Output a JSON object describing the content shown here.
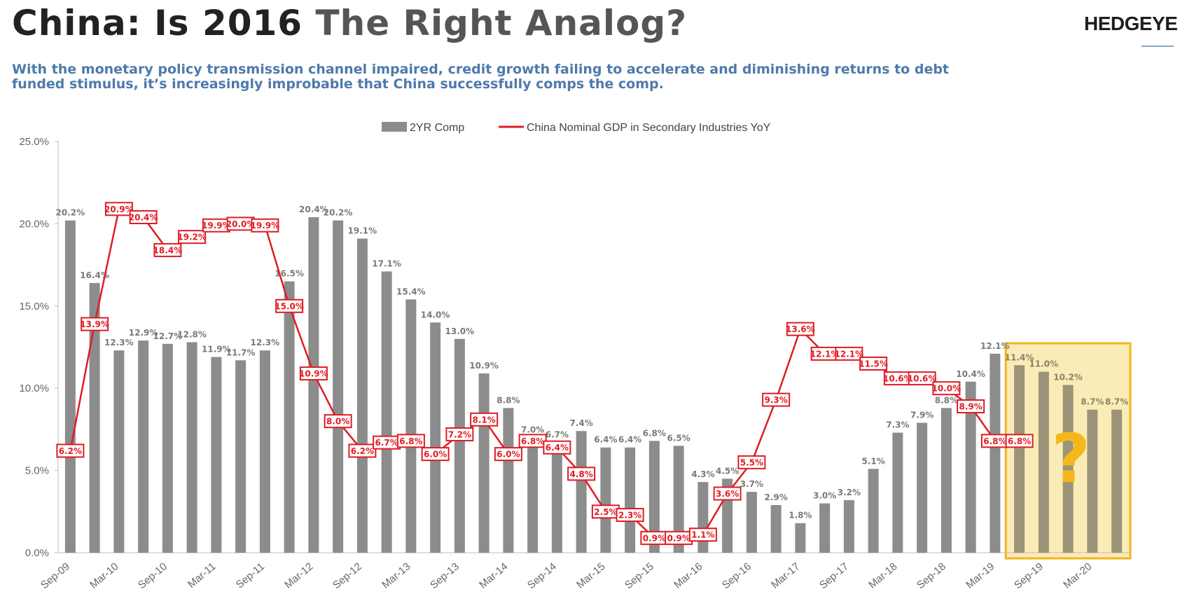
{
  "header": {
    "title_part1": "China: Is 2016 ",
    "title_part2": "The Right Analog?",
    "logo": "HEDGEYE",
    "subtitle": "With the monetary policy transmission channel impaired, credit growth failing to accelerate and diminishing returns to debt funded stimulus, it’s increasingly improbable that China successfully comps the comp."
  },
  "chart_data": {
    "type": "bar",
    "title": "",
    "xlabel": "",
    "ylabel": "",
    "ylim": [
      0,
      25
    ],
    "y_ticks": [
      "0.0%",
      "5.0%",
      "10.0%",
      "15.0%",
      "20.0%",
      "25.0%"
    ],
    "grid": false,
    "legend_position": "top-center",
    "x_tick_labels": [
      "Sep-09",
      "Mar-10",
      "Sep-10",
      "Mar-11",
      "Sep-11",
      "Mar-12",
      "Sep-12",
      "Mar-13",
      "Sep-13",
      "Mar-14",
      "Sep-14",
      "Mar-15",
      "Sep-15",
      "Mar-16",
      "Sep-16",
      "Mar-17",
      "Sep-17",
      "Mar-18",
      "Sep-18",
      "Mar-19",
      "Sep-19",
      "Mar-20"
    ],
    "series": [
      {
        "name": "2YR Comp",
        "kind": "bar",
        "color": "#8c8c8c",
        "values": [
          20.2,
          16.4,
          12.3,
          12.9,
          12.7,
          12.8,
          11.9,
          11.7,
          12.3,
          16.5,
          20.4,
          20.2,
          19.1,
          17.1,
          15.4,
          14.0,
          13.0,
          10.9,
          8.8,
          7.0,
          6.7,
          7.4,
          6.4,
          6.4,
          6.8,
          6.5,
          4.3,
          4.5,
          3.7,
          2.9,
          1.8,
          3.0,
          3.2,
          5.1,
          7.3,
          7.9,
          8.8,
          10.4,
          12.1,
          11.4,
          11.0,
          10.2,
          8.7,
          8.7
        ],
        "labels": [
          "20.2%",
          "16.4%",
          "12.3%",
          "12.9%",
          "12.7%",
          "12.8%",
          "11.9%",
          "11.7%",
          "12.3%",
          "16.5%",
          "20.4%",
          "20.2%",
          "19.1%",
          "17.1%",
          "15.4%",
          "14.0%",
          "13.0%",
          "10.9%",
          "8.8%",
          "7.0%",
          "6.7%",
          "7.4%",
          "6.4%",
          "6.4%",
          "6.8%",
          "6.5%",
          "4.3%",
          "4.5%",
          "3.7%",
          "2.9%",
          "1.8%",
          "3.0%",
          "3.2%",
          "5.1%",
          "7.3%",
          "7.9%",
          "8.8%",
          "10.4%",
          "12.1%",
          "11.4%",
          "11.0%",
          "10.2%",
          "8.7%",
          "8.7%"
        ]
      },
      {
        "name": "China Nominal GDP in Secondary Industries YoY",
        "kind": "line",
        "color": "#e01c24",
        "values": [
          6.2,
          13.9,
          20.9,
          20.4,
          18.4,
          19.2,
          19.9,
          20.0,
          19.9,
          15.0,
          10.9,
          8.0,
          6.2,
          6.7,
          6.8,
          6.0,
          7.2,
          8.1,
          6.0,
          6.8,
          6.4,
          4.8,
          2.5,
          2.3,
          0.9,
          0.9,
          1.1,
          3.6,
          5.5,
          9.3,
          13.6,
          12.1,
          12.1,
          11.5,
          10.6,
          10.6,
          10.0,
          8.9,
          6.8,
          6.8
        ],
        "labels": [
          "6.2%",
          "13.9%",
          "20.9%",
          "20.4%",
          "18.4%",
          "19.2%",
          "19.9%",
          "20.0%",
          "19.9%",
          "15.0%",
          "10.9%",
          "8.0%",
          "6.2%",
          "6.7%",
          "6.8%",
          "6.0%",
          "7.2%",
          "8.1%",
          "6.0%",
          "6.8%",
          "6.4%",
          "4.8%",
          "2.5%",
          "2.3%",
          "0.9%",
          "0.9%",
          "1.1%",
          "3.6%",
          "5.5%",
          "9.3%",
          "13.6%",
          "12.1%",
          "12.1%",
          "11.5%",
          "10.6%",
          "10.6%",
          "10.0%",
          "8.9%",
          "6.8%",
          "6.8%"
        ]
      }
    ],
    "highlight": {
      "from_index": 39,
      "to_index": 43,
      "fill": "#fbebb6",
      "stroke": "#f2b51c",
      "annotation": "?",
      "annotation_color": "#f4b81c"
    }
  }
}
